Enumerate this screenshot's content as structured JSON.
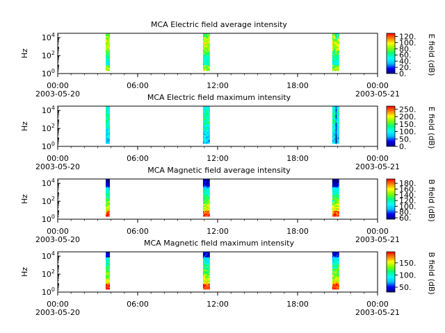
{
  "chart_data": [
    {
      "type": "heatmap",
      "title": "MCA  Electric field average intensity",
      "ylabel": "Hz",
      "y_scale": "log",
      "y_range": [
        1,
        30000
      ],
      "y_ticks": [
        {
          "v": 1,
          "b": "10",
          "e": "0"
        },
        {
          "v": 100,
          "b": "10",
          "e": "2"
        },
        {
          "v": 10000,
          "b": "10",
          "e": "4"
        }
      ],
      "x_range": [
        0,
        24
      ],
      "x_ticks": [
        {
          "v": 0,
          "label": "00:00"
        },
        {
          "v": 6,
          "label": "06:00"
        },
        {
          "v": 12,
          "label": "12:00"
        },
        {
          "v": 18,
          "label": "18:00"
        },
        {
          "v": 24,
          "label": "00:00"
        }
      ],
      "date_labels": [
        {
          "v": 0,
          "label": "2003-05-20"
        },
        {
          "v": 24,
          "label": "2003-05-21"
        }
      ],
      "colorbar": {
        "label": "E field (dB)",
        "range": [
          0,
          130
        ],
        "ticks": [
          "0.",
          "20.",
          "40.",
          "60.",
          "80.",
          "100.",
          "120."
        ],
        "tick_values": [
          0,
          20,
          40,
          60,
          80,
          100,
          120
        ]
      },
      "coverage": [
        [
          3.6,
          3.9
        ],
        [
          10.9,
          11.4
        ],
        [
          20.6,
          21.1
        ]
      ],
      "colormap": [
        "#00007f",
        "#0000ff",
        "#00bfff",
        "#00ffff",
        "#00ff7f",
        "#7fff00",
        "#ffff00",
        "#ff7f00",
        "#ff0000"
      ]
    },
    {
      "type": "heatmap",
      "title": "MCA  Electric field maximum intensity",
      "ylabel": "Hz",
      "y_scale": "log",
      "y_range": [
        1,
        30000
      ],
      "y_ticks": [
        {
          "v": 1,
          "b": "10",
          "e": "0"
        },
        {
          "v": 100,
          "b": "10",
          "e": "2"
        },
        {
          "v": 10000,
          "b": "10",
          "e": "4"
        }
      ],
      "x_range": [
        0,
        24
      ],
      "x_ticks": [
        {
          "v": 0,
          "label": "00:00"
        },
        {
          "v": 6,
          "label": "06:00"
        },
        {
          "v": 12,
          "label": "12:00"
        },
        {
          "v": 18,
          "label": "18:00"
        },
        {
          "v": 24,
          "label": "00:00"
        }
      ],
      "date_labels": [
        {
          "v": 0,
          "label": "2003-05-20"
        },
        {
          "v": 24,
          "label": "2003-05-21"
        }
      ],
      "colorbar": {
        "label": "E field (dB)",
        "range": [
          0,
          270
        ],
        "ticks": [
          "0.",
          "50.",
          "100.",
          "150.",
          "200.",
          "250."
        ],
        "tick_values": [
          0,
          50,
          100,
          150,
          200,
          250
        ]
      },
      "coverage": [
        [
          3.6,
          3.9
        ],
        [
          10.9,
          11.4
        ],
        [
          20.6,
          21.1
        ]
      ],
      "colormap": [
        "#00007f",
        "#0000ff",
        "#00bfff",
        "#00ffff",
        "#00ff7f",
        "#7fff00",
        "#ffff00",
        "#ff7f00",
        "#ff0000"
      ]
    },
    {
      "type": "heatmap",
      "title": "MCA  Magnetic field average intensity",
      "ylabel": "Hz",
      "y_scale": "log",
      "y_range": [
        1,
        30000
      ],
      "y_ticks": [
        {
          "v": 1,
          "b": "10",
          "e": "0"
        },
        {
          "v": 100,
          "b": "10",
          "e": "2"
        },
        {
          "v": 10000,
          "b": "10",
          "e": "4"
        }
      ],
      "x_range": [
        0,
        24
      ],
      "x_ticks": [
        {
          "v": 0,
          "label": "00:00"
        },
        {
          "v": 6,
          "label": "06:00"
        },
        {
          "v": 12,
          "label": "12:00"
        },
        {
          "v": 18,
          "label": "18:00"
        },
        {
          "v": 24,
          "label": "00:00"
        }
      ],
      "date_labels": [
        {
          "v": 0,
          "label": "2003-05-20"
        },
        {
          "v": 24,
          "label": "2003-05-21"
        }
      ],
      "colorbar": {
        "label": "B field (dB)",
        "range": [
          55,
          195
        ],
        "ticks": [
          "60.",
          "80.",
          "100.",
          "120.",
          "140.",
          "160.",
          "180."
        ],
        "tick_values": [
          60,
          80,
          100,
          120,
          140,
          160,
          180
        ]
      },
      "coverage": [
        [
          3.6,
          3.9
        ],
        [
          10.9,
          11.4
        ],
        [
          20.6,
          21.1
        ]
      ],
      "colormap": [
        "#00007f",
        "#0000ff",
        "#00bfff",
        "#00ffff",
        "#00ff7f",
        "#7fff00",
        "#ffff00",
        "#ff7f00",
        "#ff0000"
      ]
    },
    {
      "type": "heatmap",
      "title": "MCA  Magnetic field maximum intensity",
      "ylabel": "Hz",
      "y_scale": "log",
      "y_range": [
        1,
        30000
      ],
      "y_ticks": [
        {
          "v": 1,
          "b": "10",
          "e": "0"
        },
        {
          "v": 100,
          "b": "10",
          "e": "2"
        },
        {
          "v": 10000,
          "b": "10",
          "e": "4"
        }
      ],
      "x_range": [
        0,
        24
      ],
      "x_ticks": [
        {
          "v": 0,
          "label": "00:00"
        },
        {
          "v": 6,
          "label": "06:00"
        },
        {
          "v": 12,
          "label": "12:00"
        },
        {
          "v": 18,
          "label": "18:00"
        },
        {
          "v": 24,
          "label": "00:00"
        }
      ],
      "date_labels": [
        {
          "v": 0,
          "label": "2003-05-20"
        },
        {
          "v": 24,
          "label": "2003-05-21"
        }
      ],
      "colorbar": {
        "label": "B field (dB)",
        "range": [
          30,
          195
        ],
        "ticks": [
          "50.",
          "100.",
          "150."
        ],
        "tick_values": [
          50,
          100,
          150
        ]
      },
      "coverage": [
        [
          3.6,
          3.9
        ],
        [
          10.9,
          11.4
        ],
        [
          20.6,
          21.1
        ]
      ],
      "colormap": [
        "#00007f",
        "#0000ff",
        "#00bfff",
        "#00ffff",
        "#00ff7f",
        "#7fff00",
        "#ffff00",
        "#ff7f00",
        "#ff0000"
      ]
    }
  ]
}
